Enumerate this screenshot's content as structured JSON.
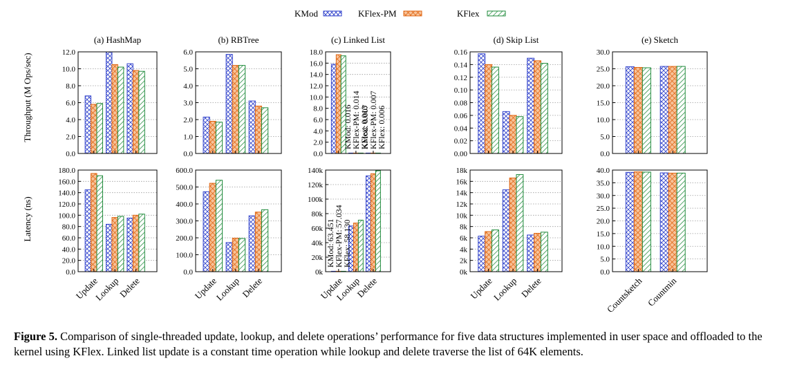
{
  "legend": [
    {
      "label": "KMod",
      "color": "#3344cc",
      "pattern": "crosshatch"
    },
    {
      "label": "KFlex-PM",
      "color": "#e8701a",
      "pattern": "check"
    },
    {
      "label": "KFlex",
      "color": "#1e8a3a",
      "pattern": "diagonal"
    }
  ],
  "ylabels": {
    "top": "Throughput (M Ops/sec)",
    "bottom": "Latency (ns)"
  },
  "caption": {
    "label": "Figure 5.",
    "text": " Comparison of single-threaded update, lookup, and delete operations’ performance for five data structures implemented in user space and offloaded to the kernel using KFlex. Linked list update is a constant time operation while lookup and delete traverse the list of 64K elements."
  },
  "chart_data": [
    {
      "type": "bar",
      "title": "(a) HashMap",
      "metric": "throughput",
      "categories": [
        "Update",
        "Lookup",
        "Delete"
      ],
      "series": [
        {
          "name": "KMod",
          "values": [
            6.8,
            12.0,
            10.6
          ]
        },
        {
          "name": "KFlex-PM",
          "values": [
            5.8,
            10.5,
            9.8
          ]
        },
        {
          "name": "KFlex",
          "values": [
            5.9,
            10.2,
            9.7
          ]
        }
      ],
      "ylim": [
        0,
        12
      ],
      "yticks": [
        "0.0",
        "2.0",
        "4.0",
        "6.0",
        "8.0",
        "10.0",
        "12.0"
      ],
      "grid": true
    },
    {
      "type": "bar",
      "title": "(b) RBTree",
      "metric": "throughput",
      "categories": [
        "Update",
        "Lookup",
        "Delete"
      ],
      "series": [
        {
          "name": "KMod",
          "values": [
            2.15,
            5.85,
            3.1
          ]
        },
        {
          "name": "KFlex-PM",
          "values": [
            1.9,
            5.2,
            2.8
          ]
        },
        {
          "name": "KFlex",
          "values": [
            1.85,
            5.2,
            2.7
          ]
        }
      ],
      "ylim": [
        0,
        6
      ],
      "yticks": [
        "0.0",
        "1.0",
        "2.0",
        "3.0",
        "4.0",
        "5.0",
        "6.0"
      ],
      "grid": true
    },
    {
      "type": "bar",
      "title": "(c) Linked List",
      "metric": "throughput",
      "categories": [
        "Update",
        "Lookup",
        "Delete"
      ],
      "series": [
        {
          "name": "KMod",
          "values": [
            15.8,
            0.016,
            0.007
          ]
        },
        {
          "name": "KFlex-PM",
          "values": [
            17.5,
            0.014,
            0.007
          ]
        },
        {
          "name": "KFlex",
          "values": [
            17.3,
            0.013,
            0.006
          ]
        }
      ],
      "ylim": [
        0,
        18
      ],
      "yticks": [
        "0.0",
        "2.0",
        "4.0",
        "6.0",
        "8.0",
        "10.0",
        "12.0",
        "14.0",
        "16.0",
        "18.0"
      ],
      "grid": true,
      "annotations": [
        {
          "category": 1,
          "lines": [
            "KMod: 0.016",
            "KFlex-PM: 0.014",
            "KFlex: 0.013"
          ]
        },
        {
          "category": 2,
          "lines": [
            "KMod: 0.007",
            "KFlex-PM: 0.007",
            "KFlex: 0.006"
          ]
        }
      ]
    },
    {
      "type": "bar",
      "title": "(d) Skip List",
      "metric": "throughput",
      "categories": [
        "Update",
        "Lookup",
        "Delete"
      ],
      "series": [
        {
          "name": "KMod",
          "values": [
            0.157,
            0.066,
            0.15
          ]
        },
        {
          "name": "KFlex-PM",
          "values": [
            0.14,
            0.06,
            0.146
          ]
        },
        {
          "name": "KFlex",
          "values": [
            0.136,
            0.058,
            0.142
          ]
        }
      ],
      "ylim": [
        0,
        0.16
      ],
      "yticks": [
        "0.00",
        "0.02",
        "0.04",
        "0.06",
        "0.08",
        "0.10",
        "0.12",
        "0.14",
        "0.16"
      ],
      "grid": true
    },
    {
      "type": "bar",
      "title": "(e) Sketch",
      "metric": "throughput",
      "categories": [
        "Countsketch",
        "Countmin"
      ],
      "series": [
        {
          "name": "KMod",
          "values": [
            25.6,
            25.7
          ]
        },
        {
          "name": "KFlex-PM",
          "values": [
            25.4,
            25.7
          ]
        },
        {
          "name": "KFlex",
          "values": [
            25.3,
            25.7
          ]
        }
      ],
      "ylim": [
        0,
        30
      ],
      "yticks": [
        "0.0",
        "5.0",
        "10.0",
        "15.0",
        "20.0",
        "25.0",
        "30.0"
      ],
      "grid": true
    },
    {
      "type": "bar",
      "title": "(a) HashMap",
      "metric": "latency",
      "categories": [
        "Update",
        "Lookup",
        "Delete"
      ],
      "series": [
        {
          "name": "KMod",
          "values": [
            145,
            84,
            95
          ]
        },
        {
          "name": "KFlex-PM",
          "values": [
            174,
            96,
            100
          ]
        },
        {
          "name": "KFlex",
          "values": [
            170,
            98,
            102
          ]
        }
      ],
      "ylim": [
        0,
        180
      ],
      "yticks": [
        "0.0",
        "20.0",
        "40.0",
        "60.0",
        "80.0",
        "100.0",
        "120.0",
        "140.0",
        "160.0",
        "180.0"
      ],
      "grid": true
    },
    {
      "type": "bar",
      "title": "(b) RBTree",
      "metric": "latency",
      "categories": [
        "Update",
        "Lookup",
        "Delete"
      ],
      "series": [
        {
          "name": "KMod",
          "values": [
            472,
            172,
            330
          ]
        },
        {
          "name": "KFlex-PM",
          "values": [
            522,
            198,
            352
          ]
        },
        {
          "name": "KFlex",
          "values": [
            540,
            196,
            366
          ]
        }
      ],
      "ylim": [
        0,
        600
      ],
      "yticks": [
        "0.0",
        "100.0",
        "200.0",
        "300.0",
        "400.0",
        "500.0",
        "600.0"
      ],
      "grid": true
    },
    {
      "type": "bar",
      "title": "(c) Linked List",
      "metric": "latency",
      "categories": [
        "Update",
        "Lookup",
        "Delete"
      ],
      "series": [
        {
          "name": "KMod",
          "values": [
            63.451,
            63000,
            132000
          ]
        },
        {
          "name": "KFlex-PM",
          "values": [
            57.034,
            67000,
            135000
          ]
        },
        {
          "name": "KFlex",
          "values": [
            58.13,
            71000,
            139000
          ]
        }
      ],
      "ylim": [
        0,
        140000
      ],
      "yticks": [
        "0k",
        "20k",
        "40k",
        "60k",
        "80k",
        "100k",
        "120k",
        "140k"
      ],
      "grid": true,
      "annotations": [
        {
          "category": 0,
          "lines": [
            "KMod: 63.451",
            "KFlex-PM: 57.034",
            "KFlex: 58.130"
          ]
        }
      ]
    },
    {
      "type": "bar",
      "title": "(d) Skip List",
      "metric": "latency",
      "categories": [
        "Update",
        "Lookup",
        "Delete"
      ],
      "series": [
        {
          "name": "KMod",
          "values": [
            6300,
            14500,
            6500
          ]
        },
        {
          "name": "KFlex-PM",
          "values": [
            7100,
            16600,
            6800
          ]
        },
        {
          "name": "KFlex",
          "values": [
            7400,
            17200,
            7000
          ]
        }
      ],
      "ylim": [
        0,
        18000
      ],
      "yticks": [
        "0k",
        "2k",
        "4k",
        "6k",
        "8k",
        "10k",
        "12k",
        "14k",
        "16k",
        "18k"
      ],
      "grid": true
    },
    {
      "type": "bar",
      "title": "(e) Sketch",
      "metric": "latency",
      "categories": [
        "Countsketch",
        "Countmin"
      ],
      "series": [
        {
          "name": "KMod",
          "values": [
            39.1,
            38.9
          ]
        },
        {
          "name": "KFlex-PM",
          "values": [
            39.3,
            38.8
          ]
        },
        {
          "name": "KFlex",
          "values": [
            39.2,
            38.8
          ]
        }
      ],
      "ylim": [
        0,
        40
      ],
      "yticks": [
        "0.0",
        "5.0",
        "10.0",
        "15.0",
        "20.0",
        "25.0",
        "30.0",
        "35.0",
        "40.0"
      ],
      "grid": true
    }
  ]
}
